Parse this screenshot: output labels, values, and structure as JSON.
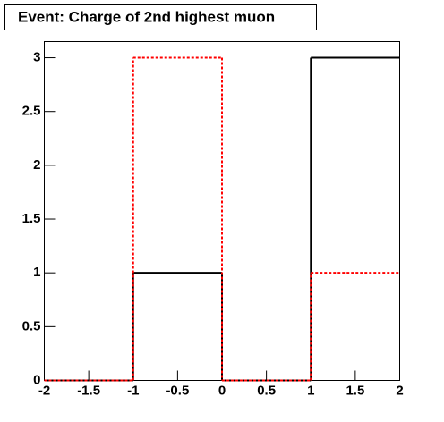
{
  "chart_data": {
    "type": "histogram",
    "title": "Event: Charge of 2nd highest muon",
    "bins": [
      -2,
      -1,
      0,
      1,
      2
    ],
    "series": [
      {
        "color": "#000000",
        "style": "solid",
        "values": [
          0,
          1,
          0,
          3
        ]
      },
      {
        "color": "#ff0000",
        "style": "dashed",
        "values": [
          0,
          3,
          0,
          1
        ]
      }
    ],
    "xlim": [
      -2,
      2
    ],
    "xticks": [
      -2,
      -1.5,
      -1,
      -0.5,
      0,
      0.5,
      1,
      1.5,
      2
    ],
    "ylim": [
      0,
      3.15
    ],
    "yticks": [
      0,
      0.5,
      1,
      1.5,
      2,
      2.5,
      3
    ]
  }
}
